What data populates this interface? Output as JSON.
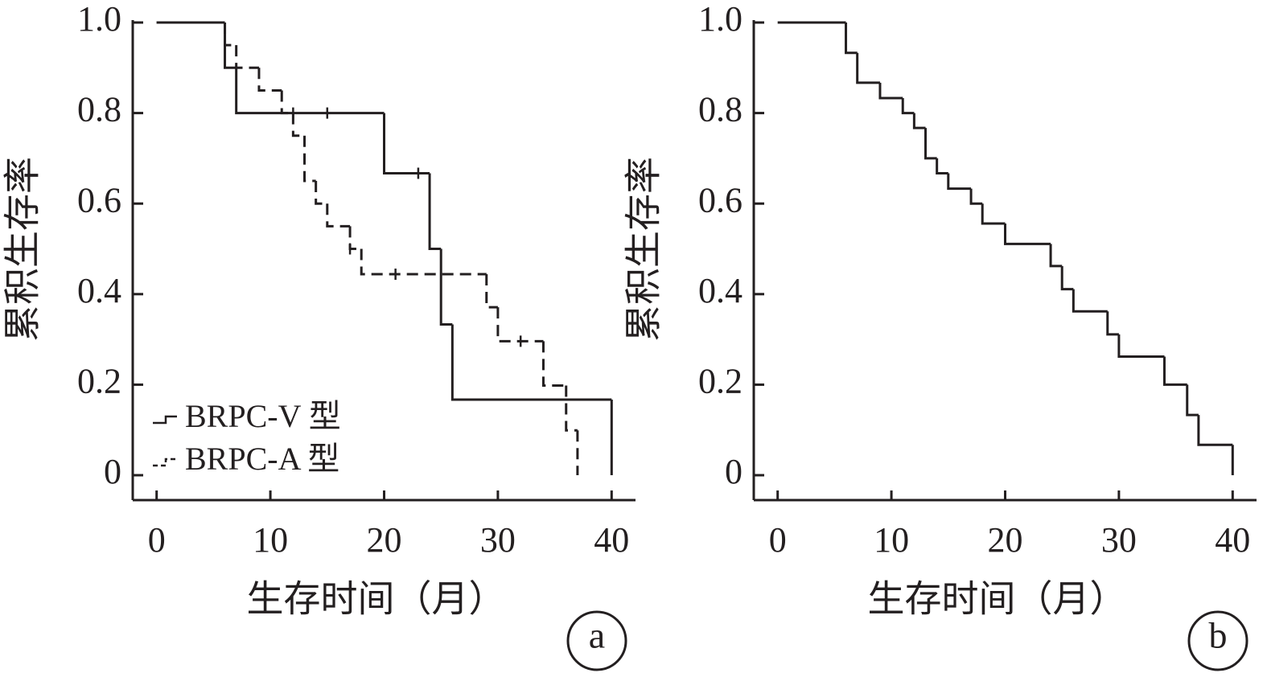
{
  "chart_data": [
    {
      "type": "step",
      "panel_label": "a",
      "xlabel": "生存时间（月）",
      "ylabel": "累积生存率",
      "xlim": [
        -2.1,
        42.1
      ],
      "ylim": [
        -0.055,
        1.0
      ],
      "xticks": [
        0,
        10,
        20,
        30,
        40
      ],
      "yticks": [
        0,
        0.2,
        0.4,
        0.6,
        0.8,
        {
          "value": 1,
          "label": "1.0"
        }
      ],
      "color": "#231f20",
      "series": [
        {
          "name": "BRPC-V 型",
          "style": "solid",
          "x": [
            0,
            6,
            7,
            20,
            24,
            25,
            26,
            40
          ],
          "values": [
            1,
            0.9,
            0.8,
            0.667,
            0.5,
            0.333,
            0.167,
            0
          ],
          "censor_x": [
            12,
            15,
            23
          ],
          "censor_values": [
            0.8,
            0.8,
            0.667
          ]
        },
        {
          "name": "BRPC-A 型",
          "style": "dashed",
          "x": [
            0,
            6,
            7,
            9,
            11,
            12,
            13,
            14,
            15,
            17,
            18,
            29,
            30,
            34,
            36,
            37
          ],
          "values": [
            1,
            0.95,
            0.9,
            0.85,
            0.8,
            0.75,
            0.65,
            0.6,
            0.55,
            0.5,
            0.444,
            0.371,
            0.296,
            0.198,
            0.099,
            0
          ],
          "censor_x": [
            17,
            21,
            32
          ],
          "censor_values": [
            0.5,
            0.444,
            0.296
          ]
        }
      ]
    },
    {
      "type": "step",
      "panel_label": "b",
      "xlabel": "生存时间（月）",
      "ylabel": "累积生存率",
      "xlim": [
        -2.1,
        42.1
      ],
      "ylim": [
        -0.055,
        1.0
      ],
      "xticks": [
        0,
        10,
        20,
        30,
        40
      ],
      "yticks": [
        0,
        0.2,
        0.4,
        0.6,
        0.8,
        {
          "value": 1,
          "label": "1.0"
        }
      ],
      "color": "#231f20",
      "series": [
        {
          "style": "solid",
          "x": [
            0,
            6,
            7,
            9,
            11,
            12,
            13,
            14,
            15,
            17,
            18,
            20,
            24,
            25,
            26,
            29,
            30,
            34,
            36,
            37,
            40
          ],
          "values": [
            1,
            0.933,
            0.867,
            0.833,
            0.8,
            0.767,
            0.7,
            0.667,
            0.633,
            0.6,
            0.556,
            0.511,
            0.462,
            0.411,
            0.362,
            0.311,
            0.262,
            0.2,
            0.133,
            0.067,
            0
          ]
        }
      ]
    }
  ]
}
